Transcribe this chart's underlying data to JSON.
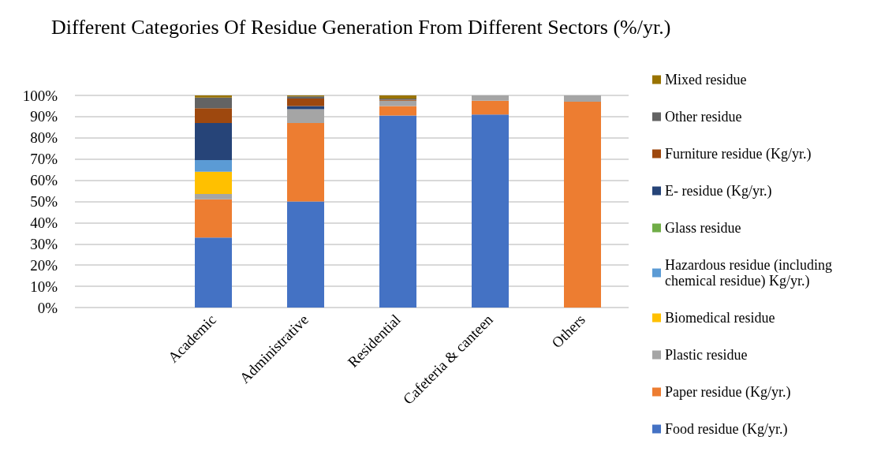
{
  "chart_data": {
    "type": "bar",
    "stacked": true,
    "title": "Different Categories Of Residue Generation From Different Sectors (%/yr.)",
    "categories": [
      null,
      "Academic",
      "Administrative",
      "Residential",
      "Cafeteria & canteen",
      "Others"
    ],
    "series": [
      {
        "name": "Food residue (Kg/yr.)",
        "color": "#4472c4",
        "values": [
          null,
          33,
          50,
          90.5,
          91,
          0
        ]
      },
      {
        "name": "Paper residue (Kg/yr.)",
        "color": "#ed7d31",
        "values": [
          null,
          18,
          37,
          4.5,
          6.5,
          97
        ]
      },
      {
        "name": "Plastic residue",
        "color": "#a5a5a5",
        "values": [
          null,
          2.5,
          6.5,
          2.5,
          2.5,
          3
        ]
      },
      {
        "name": "Biomedical residue",
        "color": "#ffc000",
        "values": [
          null,
          10.5,
          0,
          0,
          0,
          0
        ]
      },
      {
        "name": "Hazardous residue (including chemical residue) Kg/yr.)",
        "color": "#5b9bd5",
        "values": [
          null,
          5.5,
          0,
          0,
          0,
          0
        ]
      },
      {
        "name": "Glass residue",
        "color": "#70ad47",
        "values": [
          null,
          0,
          0,
          0,
          0,
          0
        ]
      },
      {
        "name": "E- residue (Kg/yr.)",
        "color": "#264478",
        "values": [
          null,
          17.5,
          1.5,
          0,
          0,
          0
        ]
      },
      {
        "name": "Furniture residue (Kg/yr.)",
        "color": "#9e480e",
        "values": [
          null,
          7,
          3.5,
          0.5,
          0,
          0
        ]
      },
      {
        "name": "Other residue",
        "color": "#636363",
        "values": [
          null,
          5,
          1,
          0.5,
          0,
          0
        ]
      },
      {
        "name": "Mixed residue",
        "color": "#997300",
        "values": [
          null,
          1,
          0.5,
          1.5,
          0,
          0
        ]
      }
    ],
    "ylim": [
      0,
      100
    ],
    "yticks": [
      {
        "value": 0,
        "label": "0%"
      },
      {
        "value": 10,
        "label": "10%"
      },
      {
        "value": 20,
        "label": "20%"
      },
      {
        "value": 30,
        "label": "30%"
      },
      {
        "value": 40,
        "label": "40%"
      },
      {
        "value": 50,
        "label": "50%"
      },
      {
        "value": 60,
        "label": "60%"
      },
      {
        "value": 70,
        "label": "70%"
      },
      {
        "value": 80,
        "label": "80%"
      },
      {
        "value": 90,
        "label": "90%"
      },
      {
        "value": 100,
        "label": "100%"
      }
    ],
    "grid": "y",
    "legend": "right"
  }
}
